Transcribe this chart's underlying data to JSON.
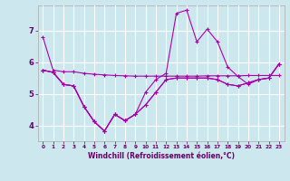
{
  "xlabel": "Windchill (Refroidissement éolien,°C)",
  "background_color": "#cce8ee",
  "grid_color": "#ffffff",
  "line_color": "#aa00aa",
  "x_ticks": [
    0,
    1,
    2,
    3,
    4,
    5,
    6,
    7,
    8,
    9,
    10,
    11,
    12,
    13,
    14,
    15,
    16,
    17,
    18,
    19,
    20,
    21,
    22,
    23
  ],
  "y_ticks": [
    4,
    5,
    6,
    7
  ],
  "xlim": [
    -0.5,
    23.5
  ],
  "ylim": [
    3.5,
    7.8
  ],
  "series": [
    [
      6.8,
      5.75,
      5.7,
      5.7,
      5.65,
      5.62,
      5.6,
      5.58,
      5.57,
      5.56,
      5.56,
      5.56,
      5.56,
      5.56,
      5.56,
      5.56,
      5.57,
      5.57,
      5.57,
      5.57,
      5.58,
      5.58,
      5.58,
      5.58
    ],
    [
      5.75,
      5.68,
      5.3,
      5.25,
      4.6,
      4.12,
      3.82,
      4.35,
      4.15,
      4.35,
      4.65,
      5.05,
      5.45,
      5.5,
      5.5,
      5.5,
      5.5,
      5.45,
      5.3,
      5.25,
      5.35,
      5.45,
      5.5,
      5.95
    ],
    [
      5.75,
      5.68,
      5.3,
      5.25,
      4.6,
      4.12,
      3.82,
      4.35,
      4.15,
      4.35,
      5.05,
      5.45,
      5.65,
      7.55,
      7.65,
      6.65,
      7.05,
      6.65,
      5.85,
      5.55,
      5.3,
      5.45,
      5.5,
      5.95
    ],
    [
      5.75,
      5.68,
      5.3,
      5.25,
      4.6,
      4.12,
      3.82,
      4.35,
      4.15,
      4.35,
      4.65,
      5.05,
      5.45,
      5.5,
      5.5,
      5.5,
      5.5,
      5.45,
      5.3,
      5.25,
      5.35,
      5.45,
      5.5,
      5.95
    ]
  ]
}
